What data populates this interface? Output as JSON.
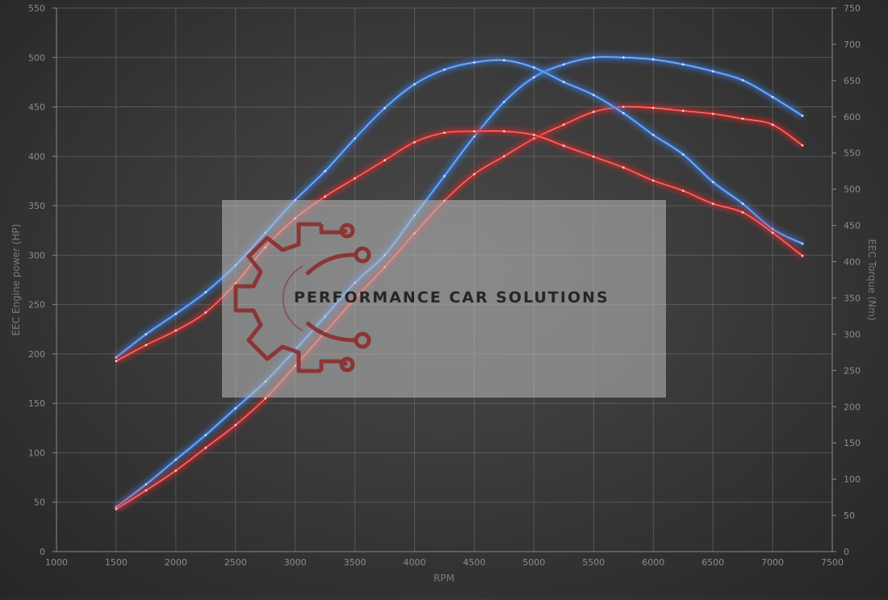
{
  "chart_data": {
    "type": "line",
    "title": "",
    "xlabel": "RPM",
    "ylabel_left": "EEC Engine power (HP)",
    "ylabel_right": "EEC Torque (Nm)",
    "xlim": [
      1000,
      7500
    ],
    "ylim_left": [
      0,
      550
    ],
    "ylim_right": [
      0,
      750
    ],
    "x_ticks": [
      "1000",
      "1500",
      "2000",
      "2500",
      "3000",
      "3500",
      "4000",
      "4500",
      "5000",
      "5500",
      "6000",
      "6500",
      "7000",
      "7500"
    ],
    "y_left_ticks": [
      "0",
      "50",
      "100",
      "150",
      "200",
      "250",
      "300",
      "350",
      "400",
      "450",
      "500",
      "550"
    ],
    "y_right_ticks": [
      "0",
      "50",
      "100",
      "150",
      "200",
      "250",
      "300",
      "350",
      "400",
      "450",
      "500",
      "550",
      "600",
      "650",
      "700",
      "750"
    ],
    "grid": true,
    "legend": "none",
    "series": [
      {
        "axis": "left",
        "color": "#3b7de0",
        "x": [
          1500,
          1750,
          2000,
          2250,
          2500,
          2750,
          3000,
          3250,
          3500,
          3750,
          4000,
          4250,
          4500,
          4750,
          5000,
          5250,
          5500,
          5750,
          6000,
          6250,
          6500,
          6750,
          7000,
          7250
        ],
        "values": [
          45,
          68,
          93,
          118,
          145,
          172,
          204,
          238,
          272,
          300,
          340,
          380,
          420,
          455,
          480,
          493,
          500,
          500,
          498,
          493,
          486,
          477,
          460,
          441
        ]
      },
      {
        "axis": "left",
        "color": "#d42a2a",
        "x": [
          1500,
          1750,
          2000,
          2250,
          2500,
          2750,
          3000,
          3250,
          3500,
          3750,
          4000,
          4250,
          4500,
          4750,
          5000,
          5250,
          5500,
          5750,
          6000,
          6250,
          6500,
          6750,
          7000,
          7250
        ],
        "values": [
          43,
          62,
          82,
          105,
          128,
          155,
          188,
          222,
          256,
          288,
          322,
          355,
          382,
          400,
          418,
          432,
          445,
          450,
          449,
          446,
          443,
          438,
          432,
          411
        ]
      },
      {
        "axis": "right",
        "color": "#3b7de0",
        "x": [
          1500,
          1750,
          2000,
          2250,
          2500,
          2750,
          3000,
          3250,
          3500,
          3750,
          4000,
          4250,
          4500,
          4750,
          5000,
          5250,
          5500,
          5750,
          6000,
          6250,
          6500,
          6750,
          7000,
          7250
        ],
        "values": [
          268,
          300,
          328,
          358,
          395,
          440,
          485,
          525,
          570,
          612,
          645,
          665,
          675,
          678,
          668,
          648,
          630,
          605,
          575,
          548,
          510,
          480,
          445,
          425
        ]
      },
      {
        "axis": "right",
        "color": "#d42a2a",
        "x": [
          1500,
          1750,
          2000,
          2250,
          2500,
          2750,
          3000,
          3250,
          3500,
          3750,
          4000,
          4250,
          4500,
          4750,
          5000,
          5250,
          5500,
          5750,
          6000,
          6250,
          6500,
          6750,
          7000,
          7250
        ],
        "values": [
          263,
          285,
          305,
          330,
          370,
          420,
          460,
          490,
          515,
          540,
          565,
          578,
          580,
          580,
          575,
          560,
          545,
          530,
          512,
          498,
          480,
          468,
          440,
          408
        ]
      }
    ]
  },
  "watermark": {
    "text": "PERFORMANCE CAR SOLUTIONS",
    "logo": "gear-circuit-logo-icon",
    "logo_color": "#8b2e2e"
  }
}
